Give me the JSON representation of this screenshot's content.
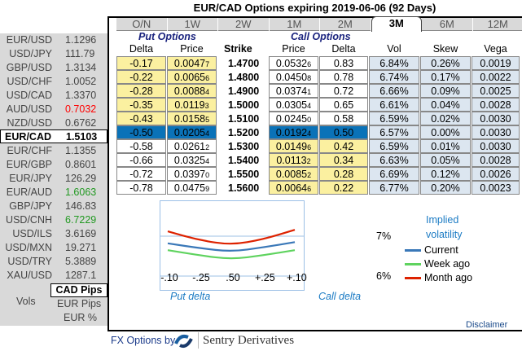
{
  "title": "EUR/CAD Options expiring 2019-06-06 (92 Days)",
  "rates": [
    {
      "pair": "EUR/USD",
      "value": "1.1296",
      "color": "#444444"
    },
    {
      "pair": "USD/JPY",
      "value": "111.79",
      "color": "#444444"
    },
    {
      "pair": "GBP/USD",
      "value": "1.3134",
      "color": "#444444"
    },
    {
      "pair": "USD/CHF",
      "value": "1.0052",
      "color": "#444444"
    },
    {
      "pair": "USD/CAD",
      "value": "1.3370",
      "color": "#444444"
    },
    {
      "pair": "AUD/USD",
      "value": "0.7032",
      "color": "#ff0000"
    },
    {
      "pair": "NZD/USD",
      "value": "0.6762",
      "color": "#444444"
    },
    {
      "pair": "EUR/CAD",
      "value": "1.5103",
      "color": "#000000",
      "selected": true
    },
    {
      "pair": "EUR/CHF",
      "value": "1.1355",
      "color": "#444444"
    },
    {
      "pair": "EUR/GBP",
      "value": "0.8601",
      "color": "#444444"
    },
    {
      "pair": "EUR/JPY",
      "value": "126.29",
      "color": "#444444"
    },
    {
      "pair": "EUR/AUD",
      "value": "1.6063",
      "color": "#229922"
    },
    {
      "pair": "GBP/JPY",
      "value": "146.83",
      "color": "#444444"
    },
    {
      "pair": "USD/CNH",
      "value": "6.7229",
      "color": "#229922"
    },
    {
      "pair": "USD/ILS",
      "value": "3.6169",
      "color": "#444444"
    },
    {
      "pair": "USD/MXN",
      "value": "19.271",
      "color": "#444444"
    },
    {
      "pair": "USD/TRY",
      "value": "5.3889",
      "color": "#444444"
    },
    {
      "pair": "XAU/USD",
      "value": "1287.1",
      "color": "#444444"
    }
  ],
  "currency_options": {
    "selected": "CAD Pips",
    "vols_label": "Vols",
    "options": [
      "EUR Pips",
      "EUR %"
    ]
  },
  "tabs": [
    "O/N",
    "1W",
    "2W",
    "1M",
    "2M",
    "3M",
    "6M",
    "12M"
  ],
  "active_tab": "3M",
  "put_label": "Put Options",
  "call_label": "Call Options",
  "headers": {
    "put_delta": "Delta",
    "put_price": "Price",
    "strike": "Strike",
    "call_price": "Price",
    "call_delta": "Delta",
    "vol": "Vol",
    "skew": "Skew",
    "vega": "Vega"
  },
  "rows": [
    {
      "put_delta": "-0.17",
      "put_price": "0.0047",
      "put_sub": "7",
      "strike": "1.4700",
      "call_price": "0.0532",
      "call_sub": "6",
      "call_delta": "0.83",
      "vol": "6.84%",
      "skew": "0.26%",
      "vega": "0.0019"
    },
    {
      "put_delta": "-0.22",
      "put_price": "0.0065",
      "put_sub": "6",
      "strike": "1.4800",
      "call_price": "0.0450",
      "call_sub": "8",
      "call_delta": "0.78",
      "vol": "6.74%",
      "skew": "0.17%",
      "vega": "0.0022"
    },
    {
      "put_delta": "-0.28",
      "put_price": "0.0088",
      "put_sub": "4",
      "strike": "1.4900",
      "call_price": "0.0374",
      "call_sub": "1",
      "call_delta": "0.72",
      "vol": "6.66%",
      "skew": "0.09%",
      "vega": "0.0025"
    },
    {
      "put_delta": "-0.35",
      "put_price": "0.0119",
      "put_sub": "3",
      "strike": "1.5000",
      "call_price": "0.0305",
      "call_sub": "4",
      "call_delta": "0.65",
      "vol": "6.61%",
      "skew": "0.04%",
      "vega": "0.0028"
    },
    {
      "put_delta": "-0.43",
      "put_price": "0.0158",
      "put_sub": "5",
      "strike": "1.5100",
      "call_price": "0.0245",
      "call_sub": "0",
      "call_delta": "0.58",
      "vol": "6.59%",
      "skew": "0.02%",
      "vega": "0.0030"
    },
    {
      "put_delta": "-0.50",
      "put_price": "0.0205",
      "put_sub": "4",
      "strike": "1.5200",
      "call_price": "0.0192",
      "call_sub": "4",
      "call_delta": "0.50",
      "vol": "6.57%",
      "skew": "0.00%",
      "vega": "0.0030",
      "atm": true
    },
    {
      "put_delta": "-0.58",
      "put_price": "0.0261",
      "put_sub": "2",
      "strike": "1.5300",
      "call_price": "0.0149",
      "call_sub": "6",
      "call_delta": "0.42",
      "vol": "6.59%",
      "skew": "0.01%",
      "vega": "0.0030"
    },
    {
      "put_delta": "-0.66",
      "put_price": "0.0325",
      "put_sub": "4",
      "strike": "1.5400",
      "call_price": "0.0113",
      "call_sub": "2",
      "call_delta": "0.34",
      "vol": "6.63%",
      "skew": "0.05%",
      "vega": "0.0028"
    },
    {
      "put_delta": "-0.72",
      "put_price": "0.0397",
      "put_sub": "0",
      "strike": "1.5500",
      "call_price": "0.0085",
      "call_sub": "2",
      "call_delta": "0.28",
      "vol": "6.69%",
      "skew": "0.12%",
      "vega": "0.0026"
    },
    {
      "put_delta": "-0.78",
      "put_price": "0.0475",
      "put_sub": "9",
      "strike": "1.5600",
      "call_price": "0.0064",
      "call_sub": "6",
      "call_delta": "0.22",
      "vol": "6.77%",
      "skew": "0.20%",
      "vega": "0.0023"
    }
  ],
  "chart_data": {
    "type": "line",
    "x": [
      "-.10",
      "-.25",
      ".50",
      "+.25",
      "+.10"
    ],
    "y_ticks": [
      "7%",
      "6%"
    ],
    "ylim": [
      6,
      7
    ],
    "xlabel_left": "Put delta",
    "xlabel_right": "Call delta",
    "legend_title": "Implied volatility",
    "series": [
      {
        "name": "Current",
        "color": "#3a78b8",
        "values": [
          6.82,
          6.7,
          6.61,
          6.72,
          6.85
        ]
      },
      {
        "name": "Week ago",
        "color": "#5fd35f",
        "values": [
          6.65,
          6.52,
          6.42,
          6.52,
          6.65
        ]
      },
      {
        "name": "Month ago",
        "color": "#dd2200",
        "values": [
          7.12,
          6.9,
          6.78,
          6.92,
          7.16
        ]
      }
    ]
  },
  "disclaimer": "Disclaimer",
  "footer": {
    "label": "FX Options by",
    "brand": "Sentry Derivatives"
  }
}
